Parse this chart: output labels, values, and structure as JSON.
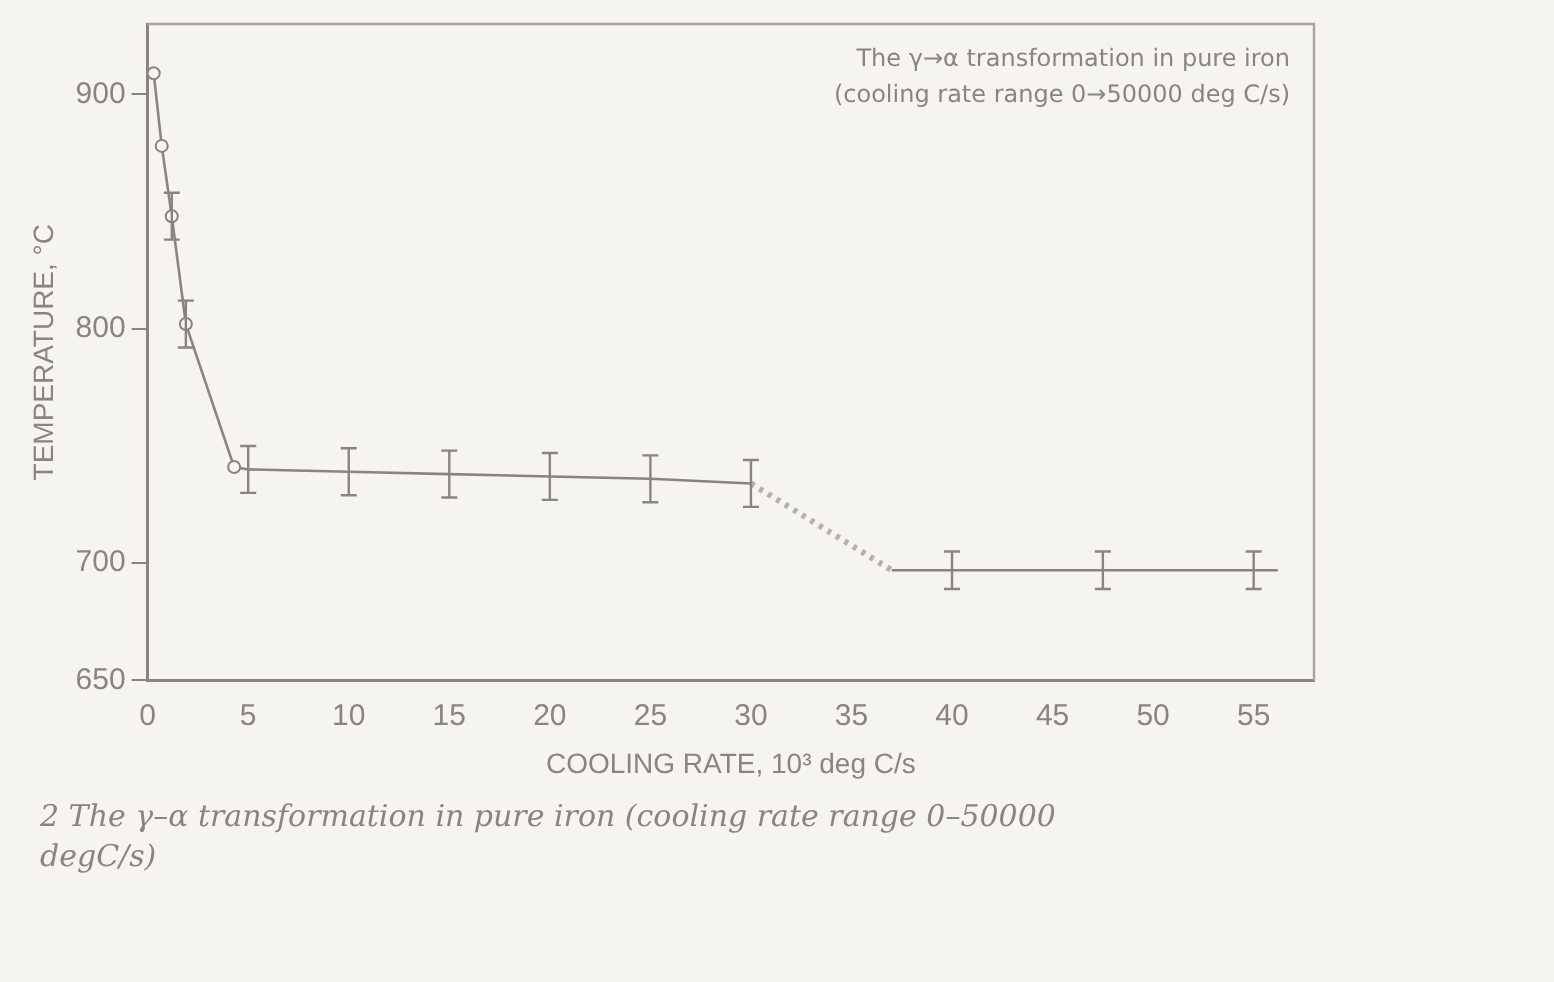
{
  "chart_data": {
    "type": "line",
    "xlabel": "COOLING RATE, 10³ deg C/s",
    "ylabel": "TEMPERATURE, °C",
    "annotations": [
      "The γ→α transformation in pure iron",
      "(cooling rate range 0→50000 deg C/s)",
      "2   The γ–α transformation in pure iron (cooling rate range 0–50000 degC/s)"
    ],
    "xlim": [
      0,
      58
    ],
    "xticks": [
      0,
      5,
      10,
      15,
      20,
      25,
      30,
      35,
      40,
      45,
      50,
      55
    ],
    "ylim": [
      650,
      930
    ],
    "yticks": [
      650,
      700,
      800,
      900
    ],
    "grid": false,
    "legend": false,
    "line_style": "solid",
    "series": [
      {
        "color": "#8a8480",
        "marker": "circle",
        "x": [
          0.3,
          0.7,
          1.2,
          1.9,
          4.3
        ],
        "values": [
          909,
          878,
          848,
          802,
          741
        ],
        "errors": [
          null,
          null,
          10,
          10,
          null
        ]
      },
      {
        "color": "#8a8480",
        "marker": "none",
        "x": [
          4.3,
          5,
          10,
          15,
          20,
          25,
          30
        ],
        "values": [
          741,
          740,
          739,
          738,
          737,
          736,
          734
        ],
        "errors": [
          null,
          10,
          10,
          10,
          10,
          10,
          10
        ]
      },
      {
        "color": "#b5b0ab",
        "marker": "none",
        "line_style": "dotted",
        "x": [
          30,
          37
        ],
        "values": [
          734,
          697
        ]
      },
      {
        "color": "#8a8480",
        "marker": "none",
        "x": [
          37,
          40,
          47.5,
          55,
          56.2
        ],
        "values": [
          697,
          697,
          697,
          697,
          697
        ],
        "errors": [
          null,
          8,
          8,
          8,
          null
        ]
      }
    ]
  }
}
